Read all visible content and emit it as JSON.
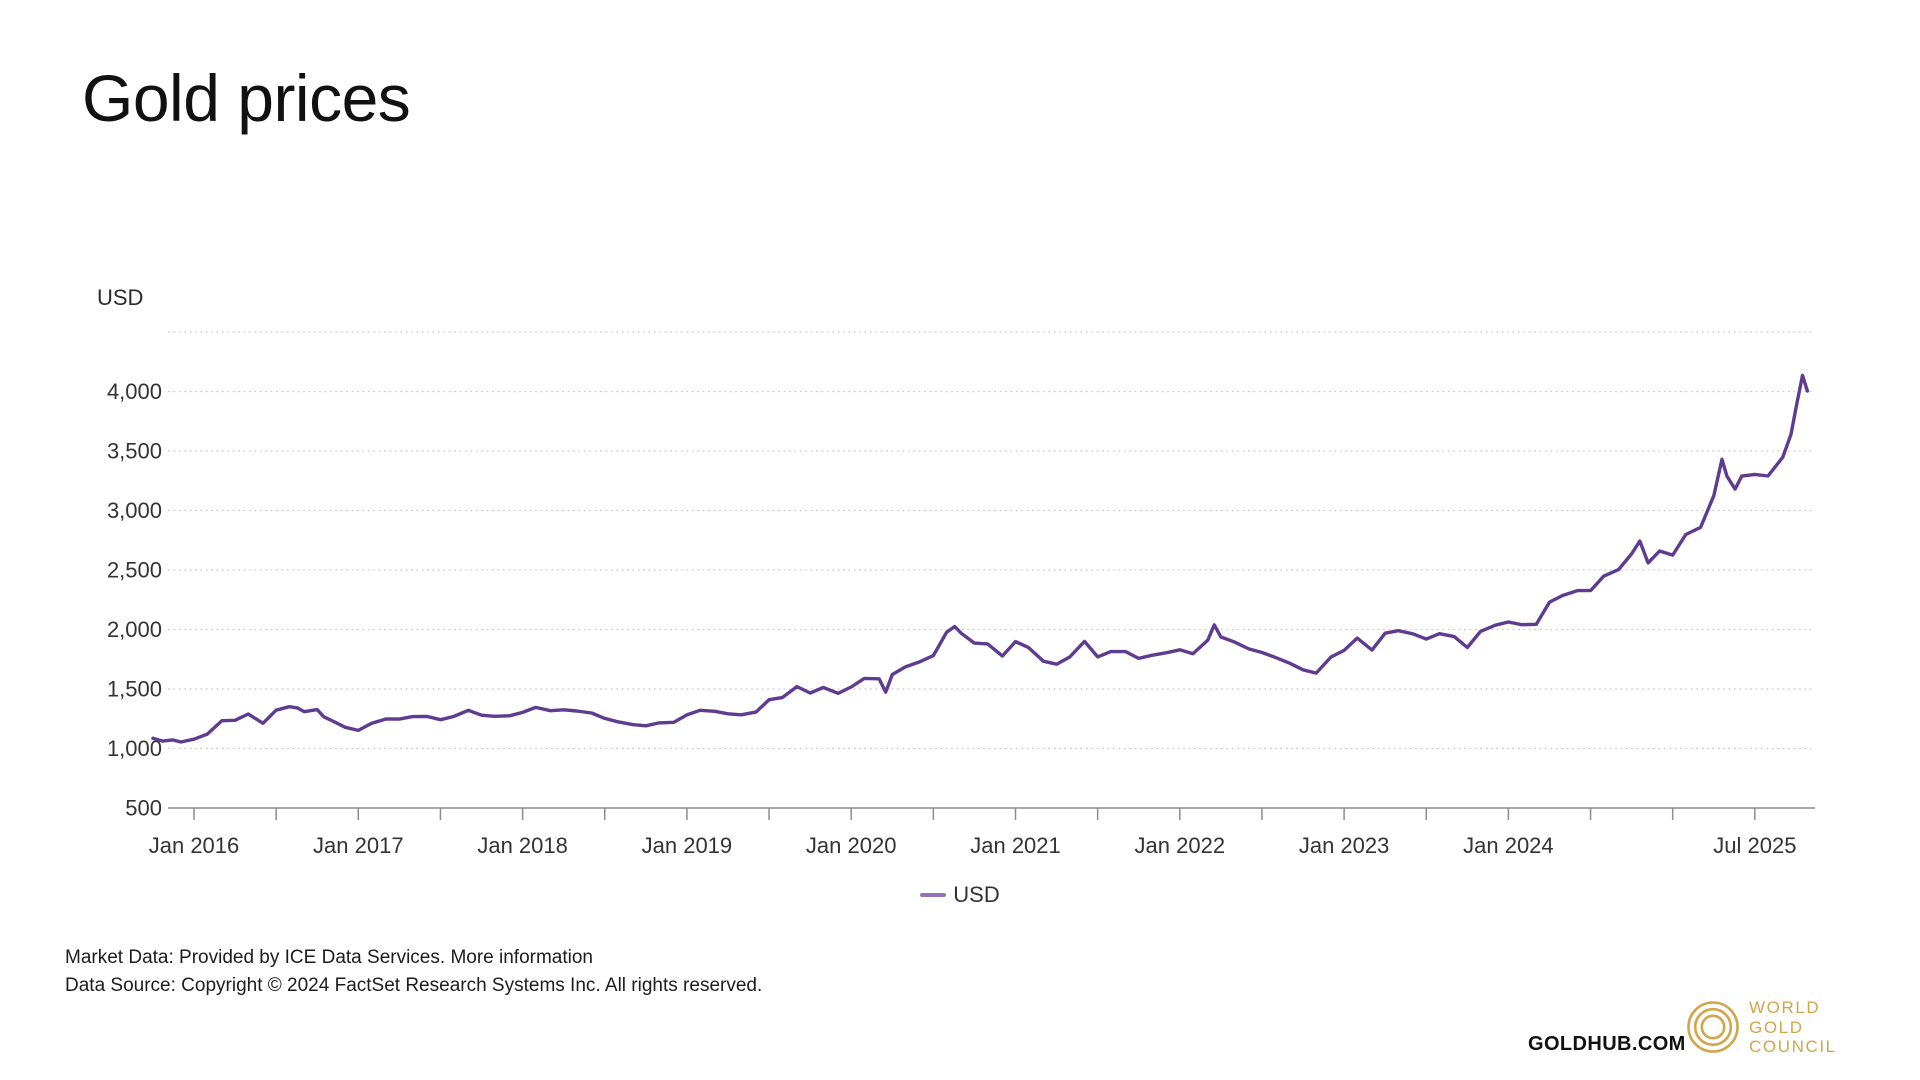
{
  "title": "Gold prices",
  "y_axis": {
    "title": "USD",
    "ticks": [
      {
        "value": 500,
        "label": "500"
      },
      {
        "value": 1000,
        "label": "1,000"
      },
      {
        "value": 1500,
        "label": "1,500"
      },
      {
        "value": 2000,
        "label": "2,000"
      },
      {
        "value": 2500,
        "label": "2,500"
      },
      {
        "value": 3000,
        "label": "3,000"
      },
      {
        "value": 3500,
        "label": "3,500"
      },
      {
        "value": 4000,
        "label": "4,000"
      },
      {
        "value": 4500,
        "label": ""
      }
    ]
  },
  "x_axis": {
    "labels": [
      {
        "t": 2016.0,
        "label": "Jan 2016"
      },
      {
        "t": 2017.0,
        "label": "Jan 2017"
      },
      {
        "t": 2018.0,
        "label": "Jan 2018"
      },
      {
        "t": 2019.0,
        "label": "Jan 2019"
      },
      {
        "t": 2020.0,
        "label": "Jan 2020"
      },
      {
        "t": 2021.0,
        "label": "Jan 2021"
      },
      {
        "t": 2022.0,
        "label": "Jan 2022"
      },
      {
        "t": 2023.0,
        "label": "Jan 2023"
      },
      {
        "t": 2024.0,
        "label": "Jan 2024"
      },
      {
        "t": 2025.5,
        "label": "Jul 2025"
      }
    ],
    "tick_start": 2016.0,
    "tick_end": 2025.5,
    "tick_step": 0.5
  },
  "legend": {
    "label": "USD"
  },
  "footer": {
    "line1": "Market Data: Provided by ICE Data Services. ",
    "link": "More information",
    "line2": "Data Source: Copyright © 2024 FactSet Research Systems Inc. All rights reserved."
  },
  "branding": {
    "goldhub": "GOLDHUB.COM",
    "wgc": [
      "WORLD",
      "GOLD",
      "COUNCIL"
    ]
  },
  "colors": {
    "line": "#5e3c8f",
    "legend_swatch": "#9673b8",
    "grid": "#c9c9c9",
    "axis": "#8c8c8c",
    "tick_text": "#333333",
    "gold": "#d2a54a"
  },
  "chart_data": {
    "type": "line",
    "title": "Gold prices",
    "ylabel": "USD",
    "ylim": [
      500,
      4500
    ],
    "xlim": [
      2015.75,
      2025.83
    ],
    "grid": "horizontal-dotted",
    "legend_position": "bottom-center",
    "x_unit": "decimal-year",
    "series": [
      {
        "name": "USD",
        "points": [
          [
            2015.75,
            1086
          ],
          [
            2015.81,
            1062
          ],
          [
            2015.87,
            1072
          ],
          [
            2015.92,
            1055
          ],
          [
            2016.0,
            1078
          ],
          [
            2016.08,
            1120
          ],
          [
            2016.17,
            1234
          ],
          [
            2016.25,
            1237
          ],
          [
            2016.33,
            1290
          ],
          [
            2016.42,
            1212
          ],
          [
            2016.5,
            1322
          ],
          [
            2016.58,
            1351
          ],
          [
            2016.63,
            1341
          ],
          [
            2016.67,
            1309
          ],
          [
            2016.75,
            1327
          ],
          [
            2016.79,
            1266
          ],
          [
            2016.83,
            1240
          ],
          [
            2016.92,
            1178
          ],
          [
            2017.0,
            1152
          ],
          [
            2017.08,
            1211
          ],
          [
            2017.17,
            1249
          ],
          [
            2017.25,
            1247
          ],
          [
            2017.33,
            1268
          ],
          [
            2017.42,
            1269
          ],
          [
            2017.5,
            1242
          ],
          [
            2017.58,
            1269
          ],
          [
            2017.67,
            1321
          ],
          [
            2017.75,
            1280
          ],
          [
            2017.83,
            1271
          ],
          [
            2017.92,
            1275
          ],
          [
            2018.0,
            1303
          ],
          [
            2018.08,
            1345
          ],
          [
            2018.17,
            1318
          ],
          [
            2018.25,
            1325
          ],
          [
            2018.33,
            1315
          ],
          [
            2018.42,
            1298
          ],
          [
            2018.5,
            1253
          ],
          [
            2018.58,
            1224
          ],
          [
            2018.67,
            1201
          ],
          [
            2018.75,
            1191
          ],
          [
            2018.83,
            1215
          ],
          [
            2018.92,
            1220
          ],
          [
            2019.0,
            1282
          ],
          [
            2019.08,
            1321
          ],
          [
            2019.17,
            1313
          ],
          [
            2019.25,
            1292
          ],
          [
            2019.33,
            1283
          ],
          [
            2019.42,
            1306
          ],
          [
            2019.5,
            1410
          ],
          [
            2019.58,
            1428
          ],
          [
            2019.67,
            1520
          ],
          [
            2019.75,
            1466
          ],
          [
            2019.83,
            1513
          ],
          [
            2019.92,
            1464
          ],
          [
            2020.0,
            1517
          ],
          [
            2020.08,
            1589
          ],
          [
            2020.17,
            1586
          ],
          [
            2020.21,
            1474
          ],
          [
            2020.25,
            1622
          ],
          [
            2020.33,
            1686
          ],
          [
            2020.42,
            1730
          ],
          [
            2020.5,
            1781
          ],
          [
            2020.58,
            1976
          ],
          [
            2020.63,
            2025
          ],
          [
            2020.67,
            1968
          ],
          [
            2020.75,
            1886
          ],
          [
            2020.83,
            1879
          ],
          [
            2020.92,
            1777
          ],
          [
            2021.0,
            1898
          ],
          [
            2021.08,
            1848
          ],
          [
            2021.17,
            1734
          ],
          [
            2021.25,
            1708
          ],
          [
            2021.33,
            1769
          ],
          [
            2021.42,
            1900
          ],
          [
            2021.5,
            1770
          ],
          [
            2021.58,
            1814
          ],
          [
            2021.67,
            1814
          ],
          [
            2021.75,
            1757
          ],
          [
            2021.83,
            1783
          ],
          [
            2021.92,
            1805
          ],
          [
            2022.0,
            1829
          ],
          [
            2022.08,
            1797
          ],
          [
            2022.17,
            1909
          ],
          [
            2022.21,
            2039
          ],
          [
            2022.25,
            1937
          ],
          [
            2022.33,
            1897
          ],
          [
            2022.42,
            1837
          ],
          [
            2022.5,
            1807
          ],
          [
            2022.58,
            1766
          ],
          [
            2022.67,
            1716
          ],
          [
            2022.75,
            1661
          ],
          [
            2022.83,
            1634
          ],
          [
            2022.92,
            1769
          ],
          [
            2023.0,
            1824
          ],
          [
            2023.08,
            1928
          ],
          [
            2023.17,
            1827
          ],
          [
            2023.25,
            1969
          ],
          [
            2023.33,
            1990
          ],
          [
            2023.42,
            1963
          ],
          [
            2023.5,
            1919
          ],
          [
            2023.58,
            1965
          ],
          [
            2023.67,
            1940
          ],
          [
            2023.75,
            1849
          ],
          [
            2023.83,
            1984
          ],
          [
            2023.92,
            2036
          ],
          [
            2024.0,
            2063
          ],
          [
            2024.08,
            2040
          ],
          [
            2024.17,
            2044
          ],
          [
            2024.25,
            2230
          ],
          [
            2024.33,
            2286
          ],
          [
            2024.42,
            2327
          ],
          [
            2024.5,
            2327
          ],
          [
            2024.58,
            2448
          ],
          [
            2024.67,
            2503
          ],
          [
            2024.75,
            2635
          ],
          [
            2024.8,
            2744
          ],
          [
            2024.85,
            2560
          ],
          [
            2024.92,
            2660
          ],
          [
            2025.0,
            2625
          ],
          [
            2025.08,
            2798
          ],
          [
            2025.17,
            2858
          ],
          [
            2025.25,
            3124
          ],
          [
            2025.3,
            3430
          ],
          [
            2025.33,
            3289
          ],
          [
            2025.38,
            3180
          ],
          [
            2025.42,
            3289
          ],
          [
            2025.5,
            3303
          ],
          [
            2025.58,
            3290
          ],
          [
            2025.67,
            3448
          ],
          [
            2025.72,
            3640
          ],
          [
            2025.75,
            3858
          ],
          [
            2025.79,
            4135
          ],
          [
            2025.82,
            4004
          ]
        ]
      }
    ]
  }
}
